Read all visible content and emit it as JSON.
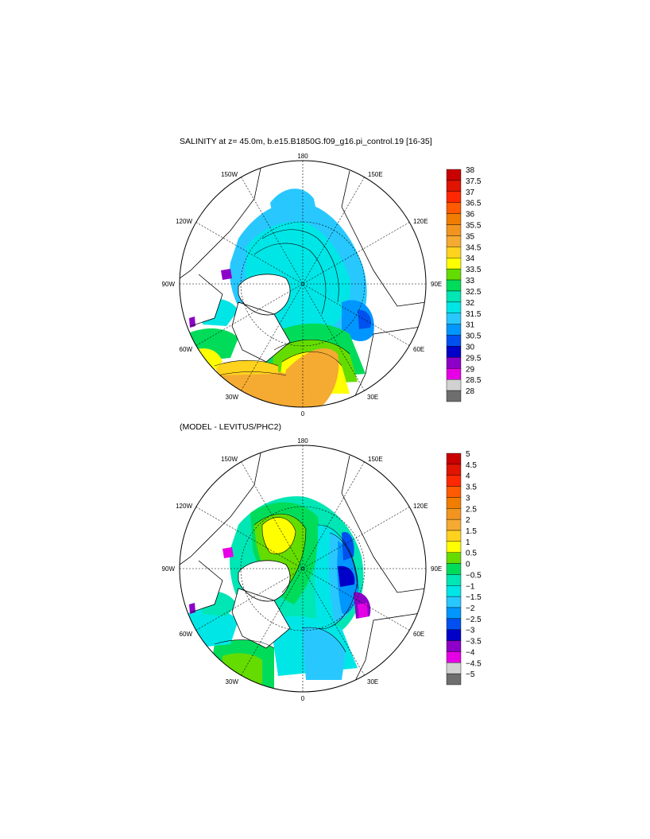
{
  "top_panel": {
    "title": "SALINITY at z=  45.0m, b.e15.B1850G.f09_g16.pi_control.19 [16-35]",
    "lon_labels": {
      "n180": "180",
      "w150": "150W",
      "e150": "150E",
      "w120": "120W",
      "e120": "120E",
      "w90": "90W",
      "e90": "90E",
      "w60": "60W",
      "e60": "60E",
      "w30": "30W",
      "e30": "30E",
      "zero": "0"
    },
    "colorbar": {
      "labels": [
        "38",
        "37.5",
        "37",
        "36.5",
        "36",
        "35.5",
        "35",
        "34.5",
        "34",
        "33.5",
        "33",
        "32.5",
        "32",
        "31.5",
        "31",
        "30.5",
        "30",
        "29.5",
        "29",
        "28.5",
        "28"
      ],
      "colors": [
        "#c80000",
        "#e01400",
        "#ff2800",
        "#ff5a00",
        "#f07d00",
        "#f29520",
        "#f5aa32",
        "#ffd21e",
        "#ffff00",
        "#64dc00",
        "#00dc5a",
        "#00e6b4",
        "#00e6e6",
        "#28c8ff",
        "#0096ff",
        "#0050f0",
        "#0000c8",
        "#8c00c8",
        "#e600e6",
        "#d2d2d2",
        "#6e6e6e"
      ]
    }
  },
  "bottom_panel": {
    "title": "(MODEL - LEVITUS/PHC2)",
    "lon_labels": {
      "n180": "180",
      "w150": "150W",
      "e150": "150E",
      "w120": "120W",
      "e120": "120E",
      "w90": "90W",
      "e90": "90E",
      "w60": "60W",
      "e60": "60E",
      "w30": "30W",
      "e30": "30E",
      "zero": "0"
    },
    "colorbar": {
      "labels": [
        "5",
        "4.5",
        "4",
        "3.5",
        "3",
        "2.5",
        "2",
        "1.5",
        "1",
        "0.5",
        "0",
        "−0.5",
        "−1",
        "−1.5",
        "−2",
        "−2.5",
        "−3",
        "−3.5",
        "−4",
        "−4.5",
        "−5"
      ],
      "colors": [
        "#c80000",
        "#e01400",
        "#ff2800",
        "#ff5a00",
        "#f07d00",
        "#f29520",
        "#f5aa32",
        "#ffd21e",
        "#ffff00",
        "#64dc00",
        "#00dc5a",
        "#00e6b4",
        "#00e6e6",
        "#28c8ff",
        "#0096ff",
        "#0050f0",
        "#0000c8",
        "#8c00c8",
        "#e600e6",
        "#d2d2d2",
        "#6e6e6e"
      ]
    }
  }
}
